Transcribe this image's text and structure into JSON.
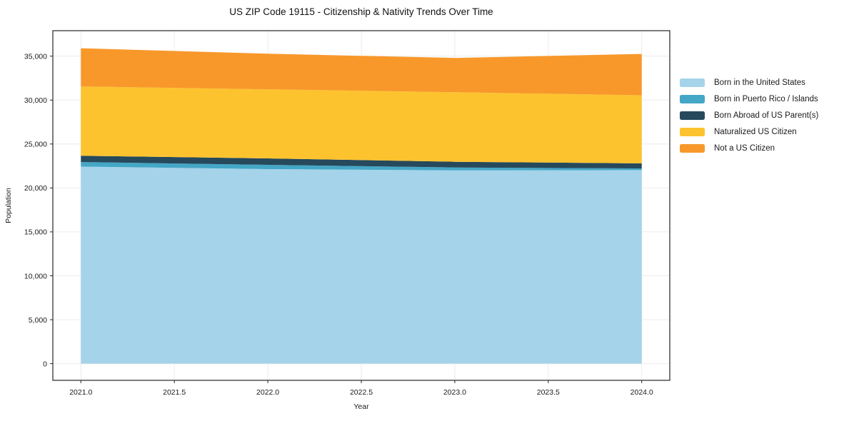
{
  "title": "US ZIP Code 19115 - Citizenship & Nativity Trends Over Time",
  "chart_data": {
    "type": "area",
    "stacked": true,
    "title": "US ZIP Code 19115 - Citizenship & Nativity Trends Over Time",
    "xlabel": "Year",
    "ylabel": "Population",
    "x": [
      2021,
      2022,
      2023,
      2024
    ],
    "series": [
      {
        "name": "Born in the United States",
        "color": "#a5d3ea",
        "values": [
          22430,
          22140,
          22000,
          22030
        ]
      },
      {
        "name": "Born in Puerto Rico / Islands",
        "color": "#44a7c6",
        "values": [
          520,
          490,
          330,
          190
        ]
      },
      {
        "name": "Born Abroad of US Parent(s)",
        "color": "#26495c",
        "values": [
          710,
          730,
          650,
          570
        ]
      },
      {
        "name": "Naturalized US Citizen",
        "color": "#fdc32f",
        "values": [
          7890,
          7860,
          7910,
          7760
        ]
      },
      {
        "name": "Not a US Citizen",
        "color": "#f8982a",
        "values": [
          4350,
          4060,
          3910,
          4700
        ]
      }
    ],
    "stacked_totals": [
      35900,
      35280,
      34800,
      35250
    ],
    "xlim": [
      2020.85,
      2024.15
    ],
    "ylim": [
      -1900,
      37900
    ],
    "x_ticks": [
      2021.0,
      2021.5,
      2022.0,
      2022.5,
      2023.0,
      2023.5,
      2024.0
    ],
    "y_ticks": [
      0,
      5000,
      10000,
      15000,
      20000,
      25000,
      30000,
      35000
    ],
    "grid": true,
    "grid_color": "#ebebeb",
    "spine_color": "#262626",
    "tick_label_color": "#1a1a1a",
    "legend_position": "right"
  }
}
